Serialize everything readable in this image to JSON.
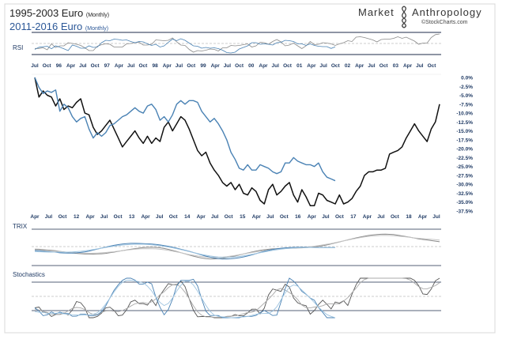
{
  "header": {
    "title_black": "1995-2003 Euro",
    "title_black_sub": "(Monthly)",
    "title_blue": "2011-2016  Euro",
    "title_blue_sub": "(Monthly)",
    "brand_left": "Market",
    "brand_right": "Anthropology",
    "brand_source": "©StockCharts.com"
  },
  "colors": {
    "black_series": "#111111",
    "blue_series": "#4a82b4",
    "gray_series": "#8a8a8a",
    "light_blue_series": "#9ec4e0",
    "panel_line": "#1d2b4a",
    "axis_label": "#1f3a64",
    "blue_label": "#2b5797"
  },
  "panels": {
    "rsi": "RSI",
    "trix": "TRIX",
    "stochastics": "Stochastics"
  },
  "chart_data": {
    "type": "line",
    "top_axis_labels": [
      "Jul",
      "Oct",
      "96",
      "Apr",
      "Jul",
      "Oct",
      "97",
      "Apr",
      "Jul",
      "Oct",
      "98",
      "Apr",
      "Jul",
      "Oct",
      "99",
      "Apr",
      "Jul",
      "Oct",
      "00",
      "Apr",
      "Jul",
      "Oct",
      "01",
      "Apr",
      "Jul",
      "Oct",
      "02",
      "Apr",
      "Jul",
      "Oct",
      "03",
      "Apr",
      "Jul",
      "Oct"
    ],
    "bottom_axis_labels": [
      "Apr",
      "Jul",
      "Oct",
      "12",
      "Apr",
      "Jul",
      "Oct",
      "13",
      "Apr",
      "Jul",
      "Oct",
      "14",
      "Apr",
      "Jul",
      "Oct",
      "15",
      "Apr",
      "Jul",
      "Oct",
      "16",
      "Apr",
      "Jul",
      "Oct",
      "17",
      "Apr",
      "Jul",
      "Oct",
      "18",
      "Apr",
      "Jul"
    ],
    "y_ticks": [
      "0.0%",
      "-2.5%",
      "-5.0%",
      "-7.5%",
      "-10.0%",
      "-12.5%",
      "-15.0%",
      "-17.5%",
      "-20.0%",
      "-22.5%",
      "-25.0%",
      "-27.5%",
      "-30.0%",
      "-32.5%",
      "-35.0%",
      "-37.5%"
    ],
    "ylim": [
      -37.5,
      0
    ],
    "series": [
      {
        "color": "black",
        "values": [
          0.0,
          -5.5,
          -3.8,
          -5.0,
          -5.5,
          -8.0,
          -6.0,
          -9.0,
          -8.0,
          -8.5,
          -7.0,
          -6.0,
          -10.0,
          -10.5,
          -14.0,
          -16.0,
          -15.0,
          -13.5,
          -12.0,
          -14.5,
          -17.0,
          -19.5,
          -18.0,
          -16.5,
          -15.0,
          -17.0,
          -18.5,
          -16.5,
          -18.5,
          -17.0,
          -18.0,
          -14.0,
          -12.5,
          -15.0,
          -13.0,
          -11.0,
          -12.0,
          -14.5,
          -17.5,
          -20.5,
          -22.0,
          -21.0,
          -24.0,
          -26.0,
          -27.5,
          -29.5,
          -30.5,
          -29.5,
          -31.5,
          -30.0,
          -32.5,
          -33.0,
          -31.0,
          -32.0,
          -34.5,
          -35.5,
          -31.5,
          -30.0,
          -33.0,
          -32.0,
          -30.5,
          -29.5,
          -33.0,
          -35.0,
          -31.5,
          -33.5,
          -36.0,
          -36.0,
          -32.5,
          -33.0,
          -34.5,
          -35.0,
          -35.5,
          -33.0,
          -35.5,
          -35.0,
          -34.0,
          -32.0,
          -30.5,
          -27.5,
          -26.5,
          -26.5,
          -26.0,
          -26.0,
          -25.5,
          -21.5,
          -21.0,
          -20.5,
          -19.5,
          -17.0,
          -15.0,
          -13.0,
          -15.0,
          -16.5,
          -18.0,
          -14.5,
          -12.5,
          -7.5
        ]
      },
      {
        "color": "blue",
        "values": [
          0.0,
          -2.8,
          -4.5,
          -3.8,
          -4.2,
          -3.5,
          -9.5,
          -7.5,
          -8.5,
          -11.0,
          -12.5,
          -11.5,
          -11.0,
          -14.5,
          -17.0,
          -15.5,
          -16.5,
          -15.5,
          -13.5,
          -13.0,
          -12.0,
          -11.0,
          -10.5,
          -9.5,
          -8.5,
          -9.5,
          -10.0,
          -8.0,
          -7.5,
          -9.0,
          -12.0,
          -11.0,
          -12.5,
          -10.5,
          -7.5,
          -6.5,
          -7.5,
          -6.5,
          -6.5,
          -7.0,
          -9.5,
          -11.0,
          -12.5,
          -11.5,
          -13.0,
          -15.0,
          -17.5,
          -21.0,
          -23.0,
          -25.5,
          -26.0,
          -24.5,
          -26.0,
          -26.0,
          -24.5,
          -25.0,
          -25.5,
          -26.5,
          -27.0,
          -26.5,
          -24.0,
          -24.0,
          -22.5,
          -23.5,
          -24.0,
          -24.5,
          -24.5,
          -25.0,
          -24.0,
          -26.5,
          -28.0,
          -28.5,
          -29.0
        ]
      }
    ]
  }
}
